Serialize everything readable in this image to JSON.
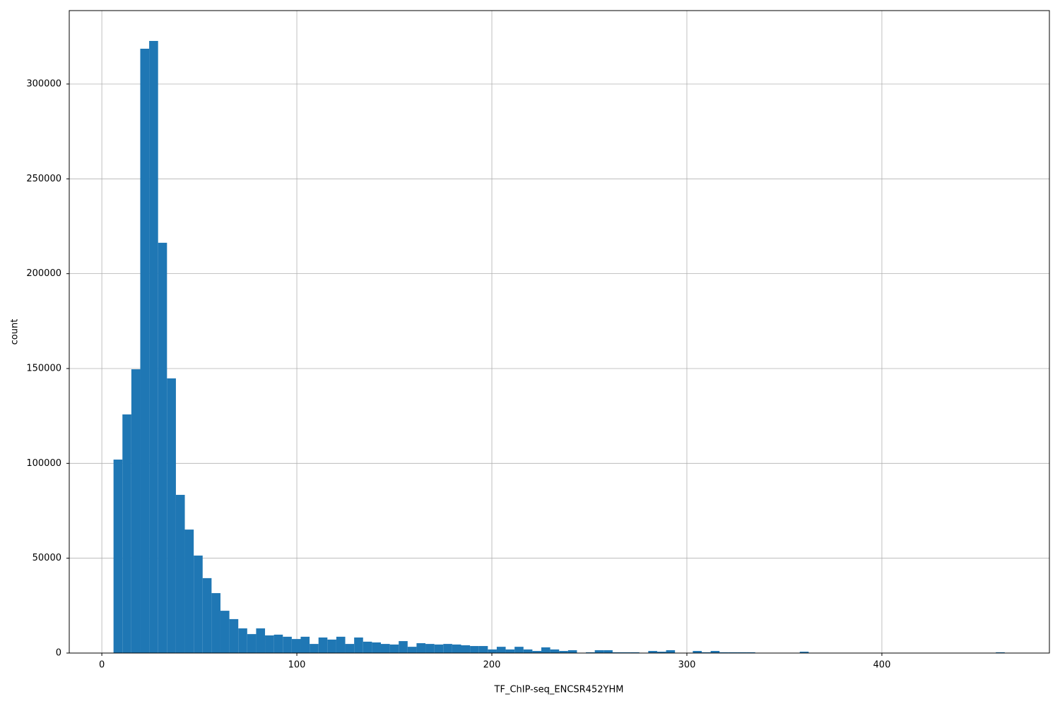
{
  "chart_data": {
    "type": "histogram",
    "x_label": "TF_ChIP-seq_ENCSR452YHM",
    "y_label": "count",
    "color": "#1f77b4",
    "grid": true,
    "bins": [
      6,
      10.57,
      15.14,
      19.71,
      24.28,
      28.85,
      33.42,
      37.99,
      42.56,
      47.13,
      51.7,
      56.27,
      60.84,
      65.41,
      69.98,
      74.55,
      79.12,
      83.69,
      88.26,
      92.83,
      97.4,
      101.97,
      106.54,
      111.11,
      115.68,
      120.25,
      124.82,
      129.39,
      133.96,
      138.53,
      143.1,
      147.67,
      152.24,
      156.81,
      161.38,
      165.95,
      170.52,
      175.09,
      179.66,
      184.23,
      188.8,
      193.37,
      197.94,
      202.51,
      207.08,
      211.65,
      216.22,
      220.79,
      225.36,
      229.93,
      234.5,
      239.07,
      243.64,
      248.21,
      252.78,
      257.35,
      261.92,
      266.49,
      271.06,
      275.63,
      280.2,
      284.77,
      289.34,
      293.91,
      298.48,
      303.05,
      307.62,
      312.19,
      316.76,
      321.33,
      325.9,
      330.47,
      335.04,
      339.61,
      344.18,
      348.75,
      353.32,
      357.89,
      362.46,
      367.03,
      371.6,
      376.17,
      380.74,
      385.31,
      389.88,
      394.45,
      399.02,
      403.59,
      408.16,
      412.73,
      417.3,
      421.87,
      426.44,
      431.01,
      435.58,
      440.15,
      444.72,
      449.29,
      453.86,
      458.43,
      463
    ],
    "values": [
      102000,
      125800,
      149600,
      318600,
      322700,
      216300,
      144800,
      83400,
      65100,
      51400,
      39500,
      31600,
      22300,
      17900,
      13000,
      10000,
      13000,
      9300,
      9700,
      8600,
      7400,
      8600,
      4800,
      8200,
      7100,
      8600,
      4800,
      8200,
      6000,
      5600,
      4800,
      4500,
      6300,
      3300,
      5200,
      4800,
      4500,
      4800,
      4500,
      4100,
      3700,
      3700,
      1900,
      3300,
      1900,
      3300,
      1900,
      1100,
      3000,
      1900,
      1100,
      1500,
      0,
      400,
      1500,
      1500,
      400,
      400,
      400,
      0,
      1100,
      700,
      1500,
      0,
      0,
      1100,
      400,
      1100,
      400,
      400,
      400,
      400,
      0,
      0,
      0,
      0,
      0,
      700,
      0,
      0,
      0,
      0,
      0,
      0,
      0,
      0,
      0,
      0,
      0,
      0,
      0,
      0,
      0,
      0,
      0,
      0,
      0,
      0,
      0,
      400
    ],
    "xlim": [
      -16.7,
      485.9
    ],
    "ylim": [
      0,
      338700
    ],
    "xticks": [
      0,
      100,
      200,
      300,
      400
    ],
    "yticks": [
      0,
      50000,
      100000,
      150000,
      200000,
      250000,
      300000
    ]
  }
}
